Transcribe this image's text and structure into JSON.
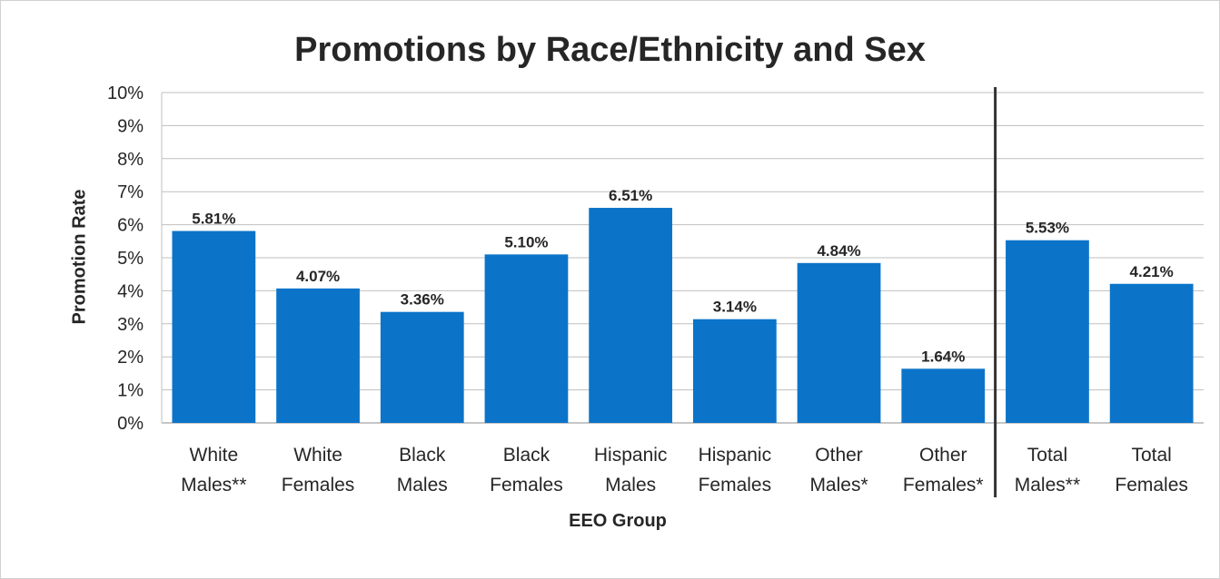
{
  "chart_data": {
    "type": "bar",
    "title": "Promotions by Race/Ethnicity and Sex",
    "xlabel": "EEO Group",
    "ylabel": "Promotion Rate",
    "ylim": [
      0,
      10
    ],
    "yticks": [
      "0%",
      "1%",
      "2%",
      "3%",
      "4%",
      "5%",
      "6%",
      "7%",
      "8%",
      "9%",
      "10%"
    ],
    "grid": true,
    "categories": [
      [
        "White",
        "Males**"
      ],
      [
        "White",
        "Females"
      ],
      [
        "Black",
        "Males"
      ],
      [
        "Black",
        "Females"
      ],
      [
        "Hispanic",
        "Males"
      ],
      [
        "Hispanic",
        "Females"
      ],
      [
        "Other",
        "Males*"
      ],
      [
        "Other",
        "Females*"
      ],
      [
        "Total",
        "Males**"
      ],
      [
        "Total",
        "Females"
      ]
    ],
    "values": [
      5.81,
      4.07,
      3.36,
      5.1,
      6.51,
      3.14,
      4.84,
      1.64,
      5.53,
      4.21
    ],
    "data_labels": [
      "5.81%",
      "4.07%",
      "3.36%",
      "5.10%",
      "6.51%",
      "3.14%",
      "4.84%",
      "1.64%",
      "5.53%",
      "4.21%"
    ],
    "separator_after_category": 8,
    "bar_color": "#0b74c9",
    "separator_color": "#333333"
  }
}
